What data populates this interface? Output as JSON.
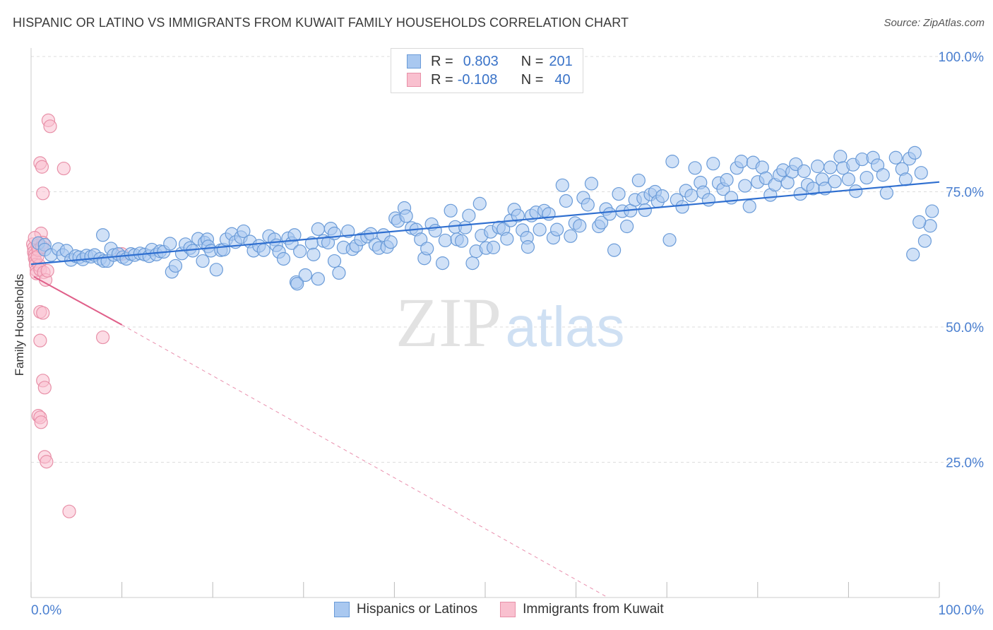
{
  "title": "HISPANIC OR LATINO VS IMMIGRANTS FROM KUWAIT FAMILY HOUSEHOLDS CORRELATION CHART",
  "source": "Source: ZipAtlas.com",
  "watermark": {
    "zip": "ZIP",
    "atlas": "atlas"
  },
  "legend": {
    "rows": [
      {
        "r_label": "R =",
        "r_value": "0.803",
        "n_label": "N =",
        "n_value": "201"
      },
      {
        "r_label": "R =",
        "r_value": "-0.108",
        "n_label": "N =",
        "n_value": "40"
      }
    ]
  },
  "bottom_legend": {
    "items": [
      {
        "label": "Hispanics or Latinos",
        "fill": "#a9c8f0",
        "stroke": "#6a9bd8"
      },
      {
        "label": "Immigrants from Kuwait",
        "fill": "#f9c0cf",
        "stroke": "#e890a8"
      }
    ]
  },
  "colors": {
    "blue_fill": "#a9c8f0",
    "blue_stroke": "#6a9bd8",
    "blue_line": "#2f6fd0",
    "pink_fill": "#f9c0cf",
    "pink_stroke": "#e890a8",
    "pink_line": "#e0608a",
    "tick_label": "#4a7fd0",
    "grid": "#dddddd"
  },
  "chart_data": {
    "type": "scatter",
    "title": "HISPANIC OR LATINO VS IMMIGRANTS FROM KUWAIT FAMILY HOUSEHOLDS CORRELATION CHART",
    "xlabel": "",
    "ylabel": "Family Households",
    "xlim": [
      0,
      100
    ],
    "ylim": [
      0,
      100
    ],
    "x_tick_labels": [
      "0.0%",
      "100.0%"
    ],
    "y_ticks": [
      25,
      50,
      75,
      100
    ],
    "y_tick_labels": [
      "25.0%",
      "50.0%",
      "75.0%",
      "100.0%"
    ],
    "grid": true,
    "legend_position": "top-center",
    "series": [
      {
        "name": "Hispanics or Latinos",
        "r": 0.803,
        "n": 201,
        "trend": {
          "x": [
            0,
            100
          ],
          "y": [
            61.6,
            76.8
          ]
        },
        "points": [
          [
            0.8,
            65.5
          ],
          [
            1.5,
            65.2
          ],
          [
            1.5,
            64.3
          ],
          [
            2.2,
            63.3
          ],
          [
            3.0,
            64.4
          ],
          [
            3.5,
            63.3
          ],
          [
            3.9,
            64.1
          ],
          [
            4.4,
            62.4
          ],
          [
            4.9,
            63.1
          ],
          [
            5.3,
            62.9
          ],
          [
            5.7,
            62.5
          ],
          [
            6.1,
            63.2
          ],
          [
            6.6,
            63.0
          ],
          [
            7.0,
            63.3
          ],
          [
            7.6,
            62.6
          ],
          [
            8.0,
            62.2
          ],
          [
            8.4,
            62.2
          ],
          [
            8.8,
            64.5
          ],
          [
            9.1,
            63.3
          ],
          [
            9.6,
            63.5
          ],
          [
            10.1,
            62.9
          ],
          [
            10.5,
            62.6
          ],
          [
            11.0,
            63.5
          ],
          [
            11.4,
            63.3
          ],
          [
            12.0,
            63.6
          ],
          [
            12.5,
            63.4
          ],
          [
            13.0,
            63.1
          ],
          [
            13.3,
            64.3
          ],
          [
            13.8,
            63.4
          ],
          [
            14.2,
            64.0
          ],
          [
            14.6,
            63.9
          ],
          [
            15.3,
            65.4
          ],
          [
            15.5,
            60.2
          ],
          [
            15.9,
            61.3
          ],
          [
            16.6,
            63.6
          ],
          [
            17.0,
            65.3
          ],
          [
            17.5,
            64.6
          ],
          [
            17.8,
            64.1
          ],
          [
            18.4,
            66.3
          ],
          [
            19.1,
            65.6
          ],
          [
            19.4,
            66.2
          ],
          [
            19.5,
            64.9
          ],
          [
            19.8,
            64.1
          ],
          [
            20.4,
            60.6
          ],
          [
            20.9,
            64.2
          ],
          [
            21.2,
            64.3
          ],
          [
            21.5,
            66.2
          ],
          [
            22.1,
            67.2
          ],
          [
            22.5,
            65.7
          ],
          [
            23.1,
            66.6
          ],
          [
            23.4,
            67.7
          ],
          [
            24.1,
            65.8
          ],
          [
            24.5,
            64.1
          ],
          [
            25.1,
            65.0
          ],
          [
            25.6,
            64.2
          ],
          [
            26.2,
            66.8
          ],
          [
            26.8,
            66.2
          ],
          [
            27.0,
            65.1
          ],
          [
            27.3,
            63.9
          ],
          [
            27.8,
            62.6
          ],
          [
            28.3,
            66.4
          ],
          [
            28.7,
            65.5
          ],
          [
            29.0,
            67.0
          ],
          [
            29.6,
            64.0
          ],
          [
            29.2,
            58.3
          ],
          [
            29.3,
            58.0
          ],
          [
            30.2,
            59.6
          ],
          [
            30.9,
            65.5
          ],
          [
            31.1,
            63.4
          ],
          [
            31.6,
            68.1
          ],
          [
            32.2,
            65.9
          ],
          [
            32.7,
            65.6
          ],
          [
            33.0,
            68.2
          ],
          [
            33.4,
            67.3
          ],
          [
            33.9,
            60.0
          ],
          [
            34.4,
            64.7
          ],
          [
            34.9,
            67.7
          ],
          [
            35.4,
            64.4
          ],
          [
            35.8,
            65.0
          ],
          [
            36.3,
            66.2
          ],
          [
            37.0,
            66.7
          ],
          [
            37.4,
            67.2
          ],
          [
            37.9,
            65.2
          ],
          [
            38.3,
            64.6
          ],
          [
            38.8,
            67.0
          ],
          [
            39.2,
            64.8
          ],
          [
            39.6,
            65.7
          ],
          [
            40.1,
            70.1
          ],
          [
            40.4,
            69.6
          ],
          [
            41.1,
            72.0
          ],
          [
            41.3,
            70.5
          ],
          [
            41.9,
            68.3
          ],
          [
            42.4,
            68.0
          ],
          [
            42.9,
            66.2
          ],
          [
            43.3,
            62.7
          ],
          [
            43.6,
            64.5
          ],
          [
            44.1,
            69.0
          ],
          [
            44.5,
            67.8
          ],
          [
            45.3,
            61.8
          ],
          [
            45.6,
            66.0
          ],
          [
            46.2,
            71.5
          ],
          [
            46.7,
            68.5
          ],
          [
            46.9,
            66.2
          ],
          [
            47.4,
            65.9
          ],
          [
            47.8,
            68.4
          ],
          [
            48.2,
            70.6
          ],
          [
            48.6,
            61.8
          ],
          [
            49.0,
            64.0
          ],
          [
            49.6,
            66.9
          ],
          [
            50.1,
            64.6
          ],
          [
            50.6,
            67.6
          ],
          [
            50.9,
            64.7
          ],
          [
            51.5,
            68.4
          ],
          [
            52.0,
            68.1
          ],
          [
            52.4,
            66.3
          ],
          [
            52.8,
            69.7
          ],
          [
            53.2,
            71.7
          ],
          [
            53.6,
            70.6
          ],
          [
            54.1,
            67.9
          ],
          [
            54.6,
            66.5
          ],
          [
            55.1,
            70.6
          ],
          [
            55.6,
            71.2
          ],
          [
            56.0,
            68.0
          ],
          [
            56.5,
            71.5
          ],
          [
            57.0,
            70.9
          ],
          [
            57.5,
            66.5
          ],
          [
            57.9,
            68.0
          ],
          [
            58.5,
            76.2
          ],
          [
            58.9,
            73.3
          ],
          [
            59.4,
            66.8
          ],
          [
            59.9,
            69.2
          ],
          [
            60.4,
            68.7
          ],
          [
            60.8,
            73.9
          ],
          [
            61.3,
            72.6
          ],
          [
            61.7,
            76.5
          ],
          [
            62.5,
            68.6
          ],
          [
            62.8,
            69.3
          ],
          [
            63.3,
            71.8
          ],
          [
            63.7,
            70.9
          ],
          [
            64.2,
            64.2
          ],
          [
            64.7,
            74.6
          ],
          [
            65.1,
            71.4
          ],
          [
            65.6,
            68.6
          ],
          [
            66.0,
            71.5
          ],
          [
            66.5,
            73.5
          ],
          [
            66.9,
            77.1
          ],
          [
            67.4,
            73.8
          ],
          [
            67.6,
            71.6
          ],
          [
            68.2,
            74.5
          ],
          [
            68.7,
            75.0
          ],
          [
            69.0,
            73.2
          ],
          [
            69.5,
            74.2
          ],
          [
            70.3,
            66.1
          ],
          [
            70.6,
            80.6
          ],
          [
            71.1,
            73.5
          ],
          [
            71.7,
            72.2
          ],
          [
            72.1,
            75.2
          ],
          [
            72.7,
            74.3
          ],
          [
            73.1,
            79.4
          ],
          [
            73.7,
            76.7
          ],
          [
            74.0,
            74.9
          ],
          [
            74.6,
            73.5
          ],
          [
            75.1,
            80.2
          ],
          [
            75.7,
            76.6
          ],
          [
            76.2,
            75.5
          ],
          [
            76.6,
            77.2
          ],
          [
            77.1,
            73.9
          ],
          [
            77.7,
            79.4
          ],
          [
            78.2,
            80.6
          ],
          [
            78.6,
            76.1
          ],
          [
            79.1,
            72.3
          ],
          [
            79.5,
            80.4
          ],
          [
            80.0,
            76.8
          ],
          [
            80.5,
            79.5
          ],
          [
            80.9,
            77.5
          ],
          [
            81.4,
            74.4
          ],
          [
            81.9,
            76.3
          ],
          [
            82.4,
            78.1
          ],
          [
            82.8,
            79.0
          ],
          [
            83.3,
            76.7
          ],
          [
            83.8,
            78.7
          ],
          [
            84.2,
            80.1
          ],
          [
            84.7,
            74.6
          ],
          [
            85.1,
            78.8
          ],
          [
            85.5,
            76.3
          ],
          [
            86.1,
            75.6
          ],
          [
            86.6,
            79.7
          ],
          [
            87.1,
            77.3
          ],
          [
            87.4,
            75.6
          ],
          [
            88.0,
            79.5
          ],
          [
            88.5,
            76.9
          ],
          [
            89.1,
            81.5
          ],
          [
            89.4,
            79.4
          ],
          [
            90.0,
            77.3
          ],
          [
            90.5,
            80.0
          ],
          [
            90.8,
            75.1
          ],
          [
            91.5,
            81.0
          ],
          [
            92.0,
            77.6
          ],
          [
            92.7,
            81.3
          ],
          [
            93.2,
            79.9
          ],
          [
            93.8,
            78.1
          ],
          [
            94.2,
            74.8
          ],
          [
            95.2,
            81.3
          ],
          [
            95.9,
            79.2
          ],
          [
            96.3,
            77.3
          ],
          [
            96.7,
            81.1
          ],
          [
            97.3,
            82.2
          ],
          [
            98.0,
            78.5
          ],
          [
            97.1,
            63.4
          ],
          [
            99.0,
            68.7
          ],
          [
            99.2,
            71.4
          ],
          [
            98.4,
            65.9
          ],
          [
            97.8,
            69.4
          ],
          [
            49.4,
            72.8
          ],
          [
            33.4,
            62.2
          ],
          [
            31.6,
            58.9
          ],
          [
            54.7,
            64.8
          ],
          [
            18.9,
            62.2
          ],
          [
            7.9,
            67.0
          ]
        ]
      },
      {
        "name": "Immigrants from Kuwait",
        "r": -0.108,
        "n": 40,
        "trend": {
          "x": [
            0.3,
            10.0
          ],
          "y": [
            59.3,
            50.4
          ]
        },
        "trend_dashed": {
          "x": [
            10.0,
            63.5
          ],
          "y": [
            50.4,
            0.0
          ]
        },
        "points": [
          [
            0.2,
            65.3
          ],
          [
            0.3,
            64.6
          ],
          [
            0.3,
            63.8
          ],
          [
            0.4,
            63.3
          ],
          [
            0.4,
            62.7
          ],
          [
            0.5,
            62.2
          ],
          [
            0.5,
            61.5
          ],
          [
            0.6,
            60.5
          ],
          [
            0.6,
            59.9
          ],
          [
            0.7,
            65.0
          ],
          [
            0.8,
            64.2
          ],
          [
            0.9,
            61.4
          ],
          [
            1.0,
            60.6
          ],
          [
            1.1,
            67.3
          ],
          [
            1.3,
            65.6
          ],
          [
            1.4,
            60.1
          ],
          [
            1.6,
            58.7
          ],
          [
            1.8,
            60.4
          ],
          [
            1.0,
            80.3
          ],
          [
            1.2,
            79.6
          ],
          [
            1.3,
            74.7
          ],
          [
            1.9,
            88.2
          ],
          [
            2.1,
            87.1
          ],
          [
            3.6,
            79.3
          ],
          [
            1.0,
            52.8
          ],
          [
            1.3,
            52.6
          ],
          [
            1.0,
            47.5
          ],
          [
            7.9,
            48.1
          ],
          [
            1.3,
            40.1
          ],
          [
            1.5,
            38.8
          ],
          [
            0.8,
            33.6
          ],
          [
            1.0,
            33.3
          ],
          [
            1.1,
            32.4
          ],
          [
            1.5,
            26.0
          ],
          [
            1.7,
            25.1
          ],
          [
            4.2,
            15.9
          ],
          [
            10.0,
            63.5
          ],
          [
            0.4,
            66.5
          ],
          [
            0.7,
            63.0
          ],
          [
            1.2,
            64.8
          ]
        ]
      }
    ]
  }
}
